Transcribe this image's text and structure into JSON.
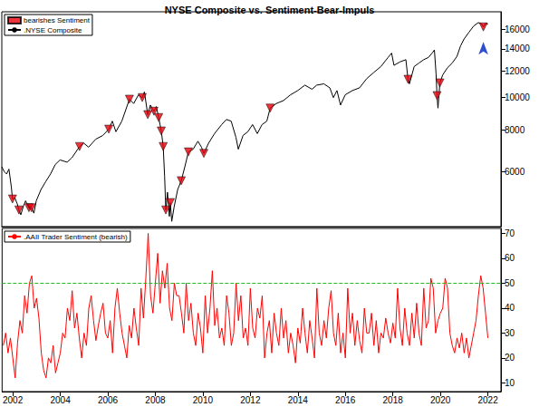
{
  "chart_data": [
    {
      "type": "line",
      "title": "NYSE Composite vs. Sentiment-Bear-Impuls",
      "log": "y",
      "grid": false,
      "legend": "top-left",
      "tick_labels": "y",
      "xlim": [
        2001.55,
        2022.55
      ],
      "xticks": [
        2002,
        2004,
        2006,
        2008,
        2010,
        2012,
        2014,
        2016,
        2018,
        2020,
        2022
      ],
      "ylim": [
        4100,
        18100
      ],
      "yticks": [
        6000,
        8000,
        10000,
        12000,
        14000,
        16000
      ],
      "arrow": {
        "x": 2021.81,
        "y": 14700,
        "color": "#2f4fd0"
      },
      "series": [
        {
          "name": "bearishes Sentiment",
          "type": "scatter",
          "marker": "triangle-down",
          "color": "#e8000b",
          "x": [
            2002.0,
            2002.27,
            2002.69,
            2002.8,
            2004.82,
            2006.05,
            2006.92,
            2007.46,
            2007.69,
            2007.95,
            2008.15,
            2008.26,
            2008.34,
            2008.45,
            2008.64,
            2009.1,
            2009.4,
            2010.05,
            2012.84,
            2018.64,
            2019.86,
            2019.98,
            2021.81
          ],
          "values": [
            4960,
            4600,
            4670,
            4670,
            7130,
            8040,
            9890,
            10000,
            8890,
            9100,
            8710,
            7940,
            7130,
            4600,
            4840,
            5630,
            6870,
            6800,
            9300,
            11350,
            10140,
            11070,
            16300
          ]
        },
        {
          "name": ".NYSE Composite",
          "type": "line",
          "color": "#000000",
          "x": [
            2001.55,
            2001.65,
            2001.75,
            2001.85,
            2001.95,
            2002.0,
            2002.1,
            2002.2,
            2002.27,
            2002.35,
            2002.45,
            2002.55,
            2002.69,
            2002.8,
            2002.9,
            2003.0,
            2003.2,
            2003.4,
            2003.6,
            2003.8,
            2004.0,
            2004.3,
            2004.5,
            2004.82,
            2005.0,
            2005.2,
            2005.5,
            2005.8,
            2006.05,
            2006.2,
            2006.35,
            2006.6,
            2006.92,
            2007.1,
            2007.3,
            2007.46,
            2007.55,
            2007.69,
            2007.8,
            2007.95,
            2008.05,
            2008.15,
            2008.26,
            2008.34,
            2008.4,
            2008.45,
            2008.52,
            2008.6,
            2008.64,
            2008.7,
            2008.8,
            2008.95,
            2009.1,
            2009.25,
            2009.4,
            2009.6,
            2009.8,
            2009.95,
            2010.05,
            2010.25,
            2010.5,
            2010.8,
            2011.0,
            2011.2,
            2011.4,
            2011.5,
            2011.7,
            2011.9,
            2012.1,
            2012.3,
            2012.5,
            2012.7,
            2012.84,
            2013.1,
            2013.4,
            2013.7,
            2014.0,
            2014.3,
            2014.6,
            2014.8,
            2015.1,
            2015.35,
            2015.5,
            2015.65,
            2015.8,
            2016.0,
            2016.3,
            2016.6,
            2016.9,
            2017.2,
            2017.5,
            2017.8,
            2017.95,
            2018.05,
            2018.3,
            2018.55,
            2018.64,
            2018.7,
            2018.9,
            2019.1,
            2019.3,
            2019.5,
            2019.65,
            2019.75,
            2019.82,
            2019.86,
            2019.9,
            2019.98,
            2020.1,
            2020.3,
            2020.5,
            2020.7,
            2020.85,
            2021.0,
            2021.2,
            2021.4,
            2021.6,
            2021.75,
            2021.81,
            2021.9,
            2022.0
          ],
          "values": [
            6200,
            6000,
            5900,
            6100,
            5400,
            4960,
            5000,
            4800,
            4600,
            4450,
            4700,
            4900,
            4670,
            4670,
            4500,
            4900,
            5300,
            5600,
            5900,
            6300,
            6500,
            6400,
            6600,
            7130,
            7300,
            7100,
            7500,
            7700,
            8040,
            8500,
            7900,
            8500,
            9890,
            9600,
            10200,
            10000,
            10400,
            8890,
            9500,
            9100,
            9400,
            8710,
            7940,
            7130,
            5800,
            4600,
            5200,
            4400,
            4840,
            4250,
            4700,
            5300,
            5630,
            6200,
            6870,
            7000,
            7400,
            7100,
            6800,
            7300,
            7800,
            8300,
            8600,
            8500,
            7600,
            7000,
            7700,
            7900,
            8300,
            7800,
            8300,
            8500,
            9300,
            9600,
            9800,
            10200,
            10500,
            10900,
            10600,
            10900,
            11000,
            10700,
            10000,
            10500,
            9500,
            10200,
            10500,
            10700,
            11400,
            11900,
            12400,
            13200,
            13600,
            12500,
            12800,
            13000,
            11350,
            11000,
            12400,
            12700,
            13000,
            13200,
            13600,
            13900,
            11800,
            10140,
            9300,
            11070,
            11700,
            12300,
            12700,
            13300,
            14300,
            15000,
            15700,
            16400,
            16800,
            16600,
            16300,
            16700,
            16600
          ]
        }
      ]
    },
    {
      "type": "line",
      "grid": false,
      "legend": "top-left",
      "xlim": [
        2001.55,
        2022.55
      ],
      "xticks": [
        2002,
        2004,
        2006,
        2008,
        2010,
        2012,
        2014,
        2016,
        2018,
        2020,
        2022
      ],
      "ylim": [
        6.5,
        72
      ],
      "yticks": [
        10,
        20,
        30,
        40,
        50,
        60,
        70
      ],
      "threshold": 50,
      "series": [
        {
          "name": ".AAII Trader Sentiment (bearish)",
          "type": "line",
          "color": "#ff0000",
          "x": [
            2001.6,
            2001.7,
            2001.8,
            2001.9,
            2002.0,
            2002.1,
            2002.2,
            2002.3,
            2002.4,
            2002.5,
            2002.6,
            2002.7,
            2002.8,
            2002.9,
            2003.0,
            2003.1,
            2003.2,
            2003.3,
            2003.4,
            2003.5,
            2003.6,
            2003.7,
            2003.8,
            2003.9,
            2004.0,
            2004.1,
            2004.2,
            2004.3,
            2004.4,
            2004.5,
            2004.6,
            2004.7,
            2004.8,
            2004.9,
            2005.0,
            2005.1,
            2005.2,
            2005.3,
            2005.4,
            2005.5,
            2005.6,
            2005.7,
            2005.8,
            2005.9,
            2006.0,
            2006.1,
            2006.2,
            2006.3,
            2006.4,
            2006.5,
            2006.6,
            2006.7,
            2006.8,
            2006.9,
            2007.0,
            2007.1,
            2007.2,
            2007.3,
            2007.4,
            2007.5,
            2007.6,
            2007.7,
            2007.8,
            2007.9,
            2008.0,
            2008.1,
            2008.2,
            2008.3,
            2008.4,
            2008.5,
            2008.6,
            2008.7,
            2008.8,
            2008.9,
            2009.0,
            2009.1,
            2009.2,
            2009.3,
            2009.4,
            2009.5,
            2009.6,
            2009.7,
            2009.8,
            2009.9,
            2010.0,
            2010.1,
            2010.2,
            2010.3,
            2010.4,
            2010.5,
            2010.6,
            2010.7,
            2010.8,
            2010.9,
            2011.0,
            2011.1,
            2011.2,
            2011.3,
            2011.4,
            2011.5,
            2011.6,
            2011.7,
            2011.8,
            2011.9,
            2012.0,
            2012.1,
            2012.2,
            2012.3,
            2012.4,
            2012.5,
            2012.6,
            2012.7,
            2012.8,
            2012.9,
            2013.0,
            2013.1,
            2013.2,
            2013.3,
            2013.4,
            2013.5,
            2013.6,
            2013.7,
            2013.8,
            2013.9,
            2014.0,
            2014.1,
            2014.2,
            2014.3,
            2014.4,
            2014.5,
            2014.6,
            2014.7,
            2014.8,
            2014.9,
            2015.0,
            2015.1,
            2015.2,
            2015.3,
            2015.4,
            2015.5,
            2015.6,
            2015.7,
            2015.8,
            2015.9,
            2016.0,
            2016.1,
            2016.2,
            2016.3,
            2016.4,
            2016.5,
            2016.6,
            2016.7,
            2016.8,
            2016.9,
            2017.0,
            2017.1,
            2017.2,
            2017.3,
            2017.4,
            2017.5,
            2017.6,
            2017.7,
            2017.8,
            2017.9,
            2018.0,
            2018.1,
            2018.2,
            2018.3,
            2018.4,
            2018.5,
            2018.6,
            2018.7,
            2018.8,
            2018.9,
            2019.0,
            2019.1,
            2019.2,
            2019.3,
            2019.4,
            2019.5,
            2019.6,
            2019.7,
            2019.8,
            2019.9,
            2020.0,
            2020.1,
            2020.2,
            2020.3,
            2020.4,
            2020.5,
            2020.6,
            2020.7,
            2020.8,
            2020.9,
            2021.0,
            2021.1,
            2021.2,
            2021.3,
            2021.4,
            2021.5,
            2021.6,
            2021.7,
            2021.8,
            2021.9,
            2022.0
          ],
          "values": [
            25,
            30,
            22,
            28,
            20,
            12,
            26,
            35,
            30,
            45,
            38,
            50,
            53,
            40,
            44,
            36,
            22,
            15,
            12,
            20,
            18,
            25,
            14,
            18,
            22,
            30,
            28,
            40,
            35,
            47,
            32,
            38,
            28,
            20,
            30,
            25,
            40,
            45,
            35,
            27,
            33,
            38,
            42,
            30,
            28,
            35,
            22,
            40,
            48,
            38,
            30,
            25,
            20,
            33,
            28,
            40,
            32,
            25,
            48,
            36,
            52,
            70,
            45,
            38,
            50,
            62,
            42,
            55,
            48,
            58,
            40,
            35,
            50,
            45,
            45,
            38,
            30,
            50,
            35,
            42,
            30,
            25,
            38,
            32,
            22,
            45,
            30,
            40,
            55,
            33,
            40,
            28,
            32,
            25,
            45,
            38,
            25,
            30,
            50,
            35,
            45,
            28,
            32,
            25,
            48,
            32,
            28,
            40,
            36,
            45,
            20,
            30,
            35,
            22,
            38,
            30,
            25,
            40,
            28,
            35,
            22,
            30,
            25,
            18,
            32,
            26,
            40,
            30,
            22,
            35,
            28,
            20,
            48,
            30,
            25,
            35,
            28,
            40,
            47,
            30,
            25,
            38,
            22,
            30,
            20,
            48,
            30,
            38,
            25,
            35,
            27,
            22,
            40,
            30,
            30,
            38,
            25,
            35,
            22,
            30,
            28,
            36,
            30,
            26,
            34,
            28,
            48,
            32,
            25,
            40,
            30,
            25,
            38,
            28,
            42,
            30,
            25,
            48,
            32,
            35,
            52,
            48,
            30,
            35,
            38,
            40,
            52,
            48,
            30,
            25,
            22,
            28,
            24,
            30,
            22,
            28,
            20,
            25,
            30,
            35,
            45,
            53,
            48,
            38,
            28
          ]
        }
      ]
    }
  ]
}
